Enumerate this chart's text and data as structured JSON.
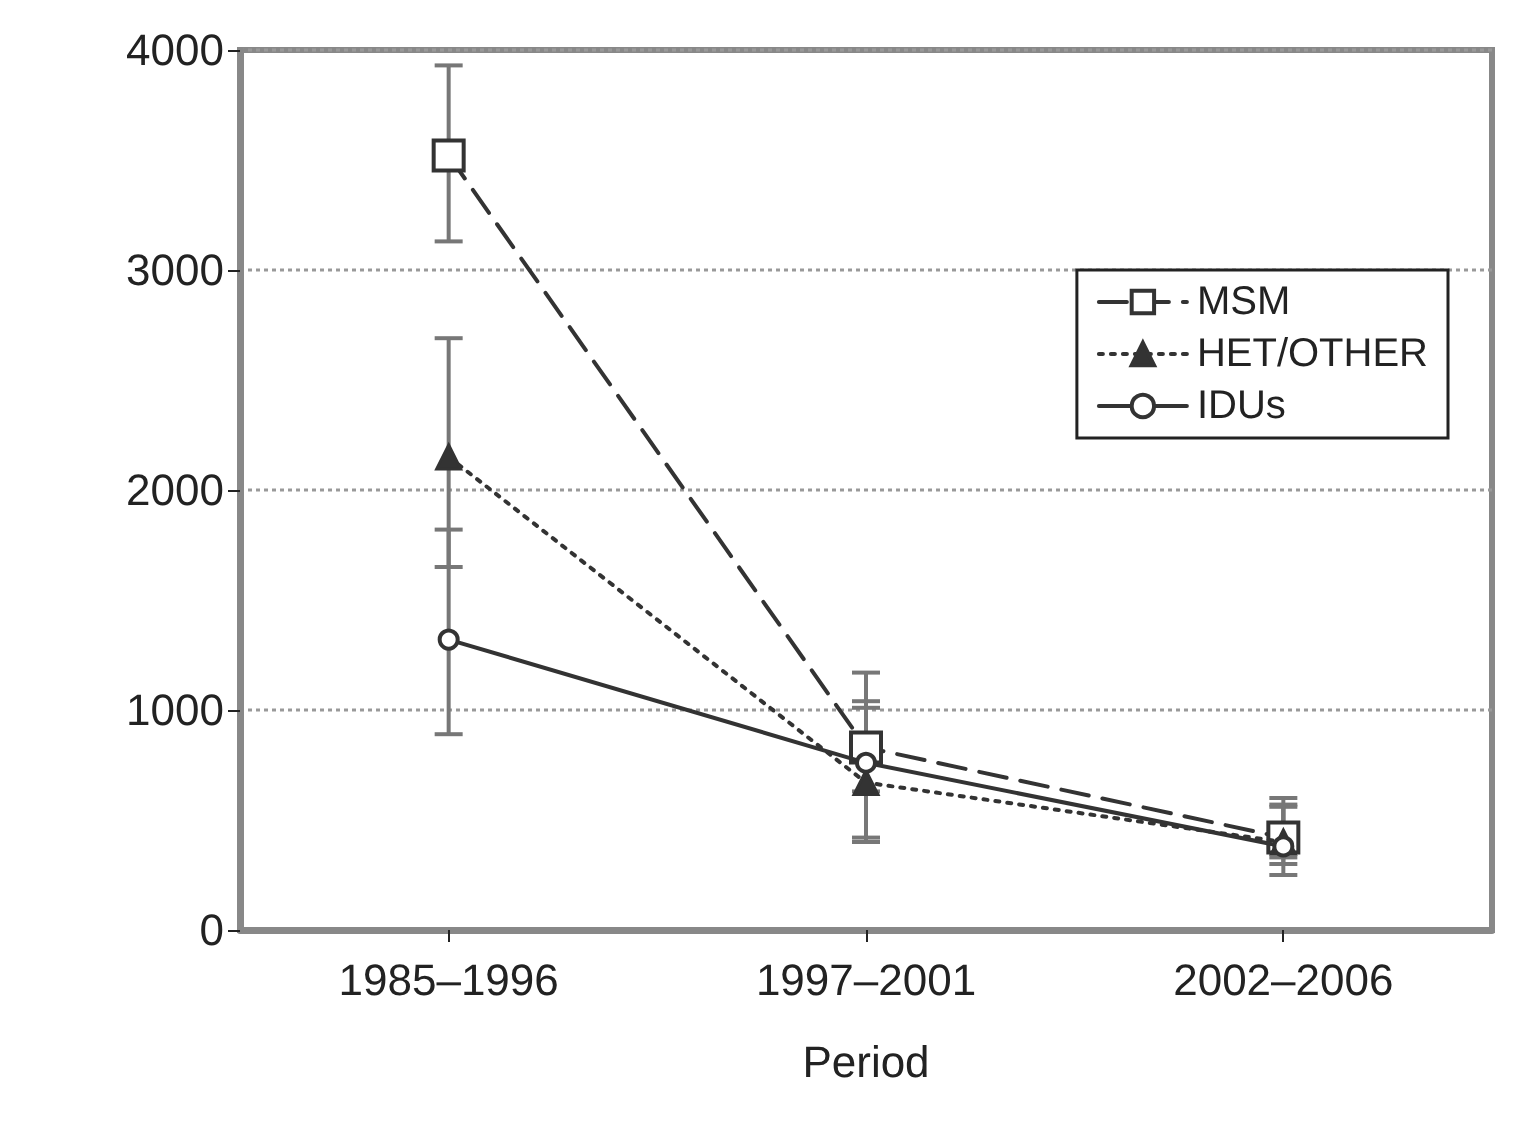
{
  "chart_data": {
    "type": "line",
    "xlabel": "Period",
    "categories": [
      "1985–1996",
      "1997–2001",
      "2002–2006"
    ],
    "series": [
      {
        "name": "MSM",
        "color": "#333333",
        "marker": "square",
        "line_style": "dashed",
        "values": [
          3520,
          830,
          420
        ],
        "errors": [
          [
            3130,
            3930
          ],
          [
            630,
            1040
          ],
          [
            330,
            600
          ]
        ]
      },
      {
        "name": "HET/OTHER",
        "color": "#333333",
        "marker": "triangle",
        "line_style": "dotted",
        "values": [
          2150,
          670,
          400
        ],
        "errors": [
          [
            1650,
            2690
          ],
          [
            400,
            1010
          ],
          [
            300,
            560
          ]
        ]
      },
      {
        "name": "IDUs",
        "color": "#333333",
        "marker": "circle",
        "line_style": "solid",
        "values": [
          1320,
          760,
          380
        ],
        "errors": [
          [
            890,
            1820
          ],
          [
            420,
            1170
          ],
          [
            250,
            570
          ]
        ]
      }
    ],
    "ylim": [
      0,
      4000
    ],
    "yticks": [
      0,
      1000,
      2000,
      3000,
      4000
    ],
    "grid": "y",
    "legend": "top right"
  }
}
